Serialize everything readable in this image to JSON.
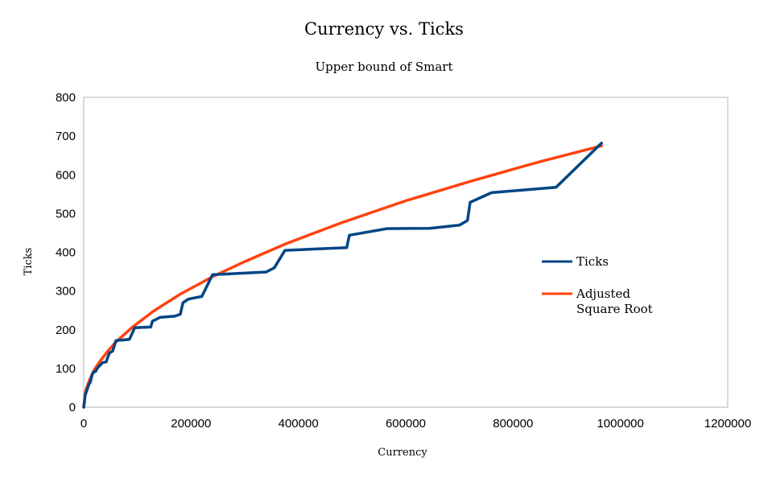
{
  "chart_data": {
    "type": "line",
    "title": "Currency vs. Ticks",
    "subtitle": "Upper bound of Smart",
    "xlabel": "Currency",
    "ylabel": "Ticks",
    "xlim": [
      0,
      1200000
    ],
    "ylim": [
      0,
      800
    ],
    "x_ticks": [
      0,
      200000,
      400000,
      600000,
      800000,
      1000000,
      1200000
    ],
    "y_ticks": [
      0,
      100,
      200,
      300,
      400,
      500,
      600,
      700,
      800
    ],
    "x_tick_labels": [
      "0",
      "200000",
      "400000",
      "600000",
      "800000",
      "1000000",
      "1200000"
    ],
    "y_tick_labels": [
      "0",
      "100",
      "200",
      "300",
      "400",
      "500",
      "600",
      "700",
      "800"
    ],
    "grid": false,
    "legend_position": "right",
    "series": [
      {
        "name": "Ticks",
        "color": "#004586",
        "points": [
          [
            0,
            0
          ],
          [
            1000,
            10
          ],
          [
            2500,
            30
          ],
          [
            5000,
            40
          ],
          [
            7500,
            50
          ],
          [
            10000,
            60
          ],
          [
            12500,
            65
          ],
          [
            15000,
            80
          ],
          [
            17500,
            90
          ],
          [
            22000,
            92
          ],
          [
            25000,
            100
          ],
          [
            28000,
            105
          ],
          [
            32000,
            110
          ],
          [
            35000,
            115
          ],
          [
            42000,
            117
          ],
          [
            45000,
            130
          ],
          [
            48000,
            140
          ],
          [
            54000,
            145
          ],
          [
            60000,
            172
          ],
          [
            85000,
            175
          ],
          [
            95000,
            205
          ],
          [
            125000,
            207
          ],
          [
            128000,
            222
          ],
          [
            142000,
            232
          ],
          [
            170000,
            235
          ],
          [
            180000,
            240
          ],
          [
            185000,
            270
          ],
          [
            195000,
            279
          ],
          [
            220000,
            286
          ],
          [
            240000,
            342
          ],
          [
            340000,
            349
          ],
          [
            355000,
            360
          ],
          [
            375000,
            405
          ],
          [
            490000,
            412
          ],
          [
            495000,
            444
          ],
          [
            565000,
            461
          ],
          [
            645000,
            462
          ],
          [
            700000,
            470
          ],
          [
            715000,
            482
          ],
          [
            720000,
            529
          ],
          [
            760000,
            554
          ],
          [
            880000,
            568
          ],
          [
            965000,
            682
          ]
        ]
      },
      {
        "name": "Adjusted Square Root",
        "color": "#ff420e",
        "points": [
          [
            0,
            0
          ],
          [
            2500,
            35
          ],
          [
            5000,
            48
          ],
          [
            10000,
            68
          ],
          [
            20000,
            97
          ],
          [
            30000,
            118
          ],
          [
            45000,
            145
          ],
          [
            60000,
            168
          ],
          [
            90000,
            206
          ],
          [
            130000,
            248
          ],
          [
            180000,
            292
          ],
          [
            240000,
            337
          ],
          [
            300000,
            376
          ],
          [
            375000,
            421
          ],
          [
            480000,
            476
          ],
          [
            600000,
            533
          ],
          [
            720000,
            583
          ],
          [
            850000,
            634
          ],
          [
            965000,
            675
          ]
        ]
      }
    ]
  }
}
